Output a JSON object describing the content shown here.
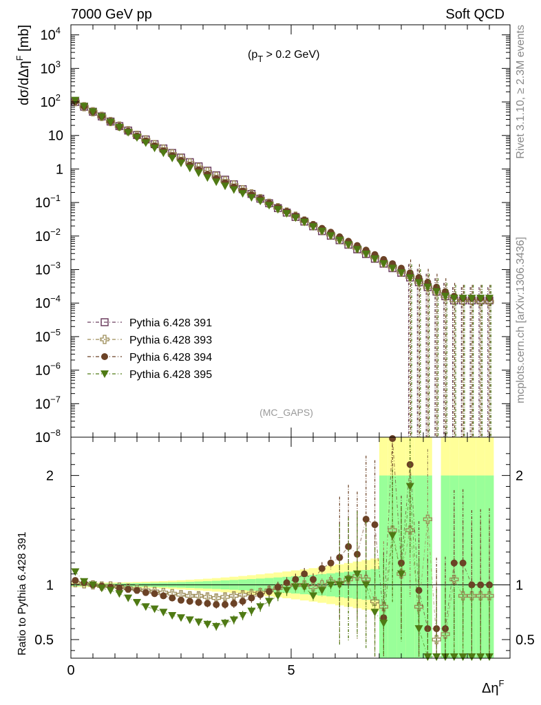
{
  "header": {
    "left": "7000 GeV pp",
    "right": "Soft QCD"
  },
  "side_labels": {
    "top": "Rivet 3.1.10, ≥ 2.3M events",
    "bottom": "mcplots.cern.ch [arXiv:1306.3436]"
  },
  "annotation": {
    "cut_main": "(p",
    "cut_sub": "T",
    "cut_rest": " > 0.2 GeV)",
    "analysis": "(MC_GAPS)"
  },
  "main_ylabel": {
    "a": "dσ/dΔη",
    "sup": "F",
    "b": " [mb]"
  },
  "ratio_ylabel": "Ratio to Pythia 6.428 391",
  "xlabel": {
    "a": "Δη",
    "sup": "F"
  },
  "colors": {
    "s391": "#6b3d5e",
    "s393": "#9a8a55",
    "s394": "#6b4226",
    "s395": "#4f7a14",
    "band_yellow": "#ffff99",
    "band_green": "#99ff99"
  },
  "chart_data": {
    "type": "scatter",
    "x": [
      0.1,
      0.3,
      0.5,
      0.7,
      0.9,
      1.1,
      1.3,
      1.5,
      1.7,
      1.9,
      2.1,
      2.3,
      2.5,
      2.7,
      2.9,
      3.1,
      3.3,
      3.5,
      3.7,
      3.9,
      4.1,
      4.3,
      4.5,
      4.7,
      4.9,
      5.1,
      5.3,
      5.5,
      5.7,
      5.9,
      6.1,
      6.3,
      6.5,
      6.7,
      6.9,
      7.1,
      7.3,
      7.5,
      7.7,
      7.9,
      8.1,
      8.3,
      8.5,
      8.7,
      8.9,
      9.1,
      9.3,
      9.5
    ],
    "main_panel": {
      "ylabel": "dσ/dΔηF [mb]",
      "yscale": "log",
      "ylim": [
        1e-08,
        20000
      ],
      "series": [
        {
          "name": "Pythia 6.428 391",
          "marker": "open-square",
          "values": [
            100,
            72,
            51,
            37,
            26,
            19,
            14,
            10.3,
            7.6,
            5.5,
            4.1,
            3.0,
            2.2,
            1.6,
            1.2,
            0.89,
            0.65,
            0.48,
            0.35,
            0.25,
            0.18,
            0.13,
            0.095,
            0.068,
            0.05,
            0.037,
            0.027,
            0.0195,
            0.014,
            0.0102,
            0.0075,
            0.0055,
            0.004,
            0.0029,
            0.0021,
            0.0015,
            0.0011,
            0.0008,
            0.00058,
            0.00042,
            0.0003,
            0.00022,
            0.00016,
            0.00012,
            0.00012,
            0.00012,
            0.00012,
            0.00012
          ]
        },
        {
          "name": "Pythia 6.428 393",
          "marker": "open-cross",
          "values": [
            102,
            72,
            51,
            37,
            26,
            19,
            13.8,
            10.1,
            7.4,
            5.3,
            3.9,
            2.8,
            2.05,
            1.5,
            1.1,
            0.82,
            0.6,
            0.44,
            0.33,
            0.24,
            0.18,
            0.13,
            0.095,
            0.07,
            0.052,
            0.039,
            0.028,
            0.0205,
            0.015,
            0.011,
            0.008,
            0.0059,
            0.0044,
            0.0032,
            0.0023,
            0.0016,
            0.0012,
            0.00085,
            0.0006,
            0.00042,
            0.0003,
            0.00022,
            0.00016,
            0.00012,
            0.00012,
            0.00012,
            0.00011,
            0.00011
          ]
        },
        {
          "name": "Pythia 6.428 394",
          "marker": "filled-circle",
          "values": [
            104,
            73,
            51,
            37,
            26,
            18.5,
            13.4,
            9.6,
            6.9,
            4.9,
            3.5,
            2.5,
            1.8,
            1.3,
            0.95,
            0.7,
            0.52,
            0.39,
            0.29,
            0.22,
            0.17,
            0.13,
            0.096,
            0.072,
            0.054,
            0.04,
            0.03,
            0.022,
            0.017,
            0.013,
            0.0095,
            0.007,
            0.0052,
            0.0038,
            0.0028,
            0.002,
            0.0015,
            0.0011,
            0.0008,
            0.00058,
            0.00042,
            0.0003,
            0.00022,
            0.00016,
            0.00014,
            0.00014,
            0.00014,
            0.00014
          ]
        },
        {
          "name": "Pythia 6.428 395",
          "marker": "filled-triangle-down",
          "values": [
            112,
            74,
            51,
            36,
            25,
            17.5,
            12.3,
            8.6,
            6.0,
            4.2,
            3.0,
            2.1,
            1.5,
            1.06,
            0.76,
            0.55,
            0.41,
            0.31,
            0.24,
            0.185,
            0.14,
            0.11,
            0.082,
            0.062,
            0.047,
            0.035,
            0.026,
            0.019,
            0.014,
            0.0102,
            0.0075,
            0.0055,
            0.004,
            0.0029,
            0.0021,
            0.0015,
            0.0011,
            0.0008,
            0.00057,
            0.00041,
            0.0003,
            0.00022,
            0.00016,
            0.00014,
            0.00014,
            0.00014,
            0.00014,
            0.00014
          ]
        }
      ]
    },
    "ratio_panel": {
      "ylabel": "Ratio to Pythia 6.428 391",
      "ylim": [
        0.33,
        2.35
      ],
      "reference": 1,
      "series": [
        {
          "name": "Pythia 6.428 393",
          "values": [
            1.02,
            1.01,
            1.0,
            0.99,
            0.99,
            0.98,
            0.97,
            0.96,
            0.95,
            0.94,
            0.93,
            0.92,
            0.91,
            0.9,
            0.9,
            0.89,
            0.88,
            0.89,
            0.9,
            0.91,
            0.92,
            0.93,
            0.95,
            0.97,
            0.99,
            1.0,
            1.0,
            0.98,
            1.0,
            1.03,
            1.02,
            1.05,
            1.08,
            1.05,
            0.85,
            0.8,
            1.5,
            1.1,
            1.5,
            0.8,
            1.6,
            0.5,
            0.55,
            1.05,
            0.9,
            0.9,
            0.9,
            0.9
          ]
        },
        {
          "name": "Pythia 6.428 394",
          "values": [
            1.04,
            1.02,
            1.0,
            0.99,
            0.98,
            0.97,
            0.96,
            0.95,
            0.93,
            0.92,
            0.9,
            0.88,
            0.86,
            0.85,
            0.84,
            0.83,
            0.82,
            0.82,
            0.83,
            0.85,
            0.88,
            0.91,
            0.94,
            0.98,
            1.02,
            1.05,
            1.1,
            1.05,
            1.15,
            1.2,
            1.25,
            1.35,
            1.28,
            1.6,
            1.55,
            0.7,
            2.4,
            1.2,
            2.1,
            0.95,
            0.6,
            0.6,
            0.6,
            1.2,
            1.2,
            1.0,
            1.0,
            1.0
          ]
        },
        {
          "name": "Pythia 6.428 395",
          "values": [
            1.12,
            1.03,
            1.0,
            0.97,
            0.95,
            0.92,
            0.88,
            0.84,
            0.8,
            0.78,
            0.75,
            0.72,
            0.7,
            0.68,
            0.66,
            0.64,
            0.62,
            0.65,
            0.68,
            0.72,
            0.76,
            0.8,
            0.85,
            0.9,
            0.95,
            0.98,
            0.98,
            0.9,
            0.95,
            1.0,
            1.0,
            1.05,
            1.1,
            1.0,
            0.75,
            0.65,
            1.45,
            1.1,
            1.9,
            0.6,
            0.3,
            0.3,
            0.3,
            0.3,
            0.3,
            0.3,
            0.3,
            0.3
          ]
        }
      ]
    },
    "xlabel": "ΔηF",
    "xlim": [
      -0.1,
      9.7
    ],
    "legend_position": "lower-left"
  }
}
